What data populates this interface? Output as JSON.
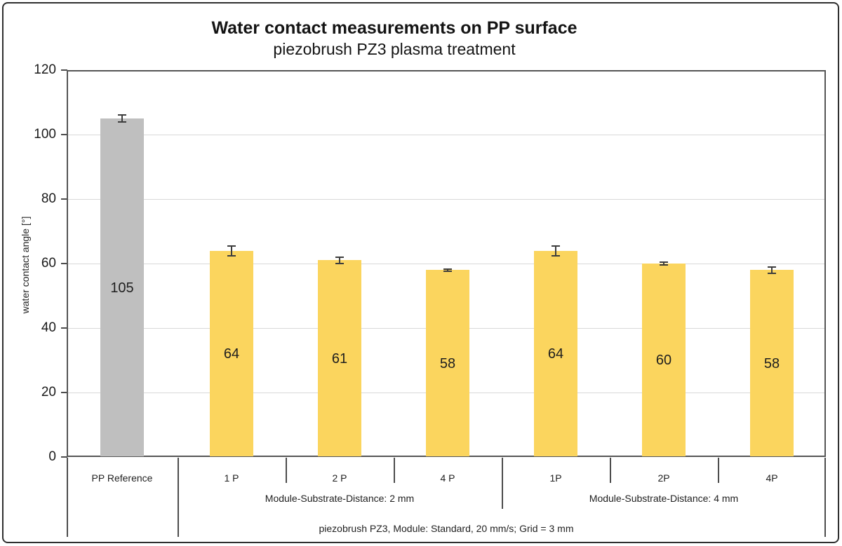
{
  "title": "Water contact measurements on PP surface",
  "subtitle": "piezobrush PZ3 plasma treatment",
  "chart_data": {
    "type": "bar",
    "title": "Water contact measurements on PP surface",
    "subtitle": "piezobrush PZ3 plasma treatment",
    "ylabel": "water contact angle [°]",
    "xlabel": "",
    "ylim": [
      0,
      120
    ],
    "yticks": [
      0,
      20,
      40,
      60,
      80,
      100,
      120
    ],
    "grid": "horizontal",
    "legend": "none",
    "categories": [
      "PP Reference",
      "1 P",
      "2 P",
      "4 P",
      "1P",
      "2P",
      "4P"
    ],
    "values": [
      105,
      64,
      61,
      58,
      64,
      60,
      58
    ],
    "errors": [
      1,
      1.5,
      1,
      0.3,
      1.5,
      0.5,
      1
    ],
    "bar_colors": [
      "#bfbfbf",
      "#fbd55e",
      "#fbd55e",
      "#fbd55e",
      "#fbd55e",
      "#fbd55e",
      "#fbd55e"
    ],
    "groups": [
      {
        "label": "Module-Substrate-Distance: 2 mm",
        "start": 1,
        "end": 3
      },
      {
        "label": "Module-Substrate-Distance: 4 mm",
        "start": 4,
        "end": 6
      }
    ],
    "caption": "piezobrush PZ3, Module: Standard, 20 mm/s; Grid = 3 mm"
  },
  "colors": {
    "reference_bar": "#bfbfbf",
    "treated_bar": "#fbd55e",
    "axis": "#555555",
    "gridline": "#d9d9d9",
    "error_bar": "#3d3d3d",
    "text": "#1f1f1f",
    "background": "#ffffff",
    "outer_border": "#2f2f2f"
  }
}
